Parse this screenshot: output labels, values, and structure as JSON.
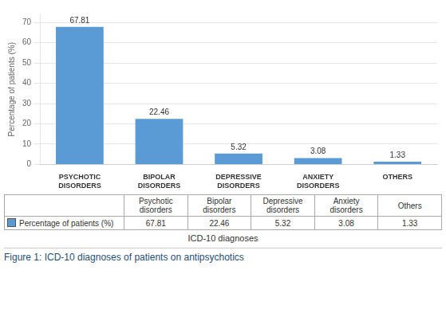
{
  "chart_data": {
    "type": "bar",
    "categories": [
      "PSYCHOTIC\nDISORDERS",
      "BIPOLAR\nDISORDERS",
      "DEPRESSIVE\nDISORDERS",
      "ANXIETY\nDISORDERS",
      "OTHERS"
    ],
    "values": [
      67.81,
      22.46,
      5.32,
      3.08,
      1.33
    ],
    "color": "#5b9bd5",
    "ylim": [
      0,
      74
    ],
    "yticks": [
      0,
      10,
      20,
      30,
      40,
      50,
      60,
      70
    ],
    "y_label": "Percentage of patients (%)",
    "x_label": "ICD-10 diagnoses",
    "grid": true,
    "data_labels": true,
    "table": {
      "columns": [
        "Psychotic\ndisorders",
        "Bipolar\ndisorders",
        "Depressive\ndisorders",
        "Anxiety\ndisorders",
        "Others"
      ],
      "row_label": "Percentage of patients (%)",
      "values": [
        67.81,
        22.46,
        5.32,
        3.08,
        1.33
      ]
    },
    "caption": "Figure 1: ICD-10 diagnoses of patients on antipsychotics"
  }
}
